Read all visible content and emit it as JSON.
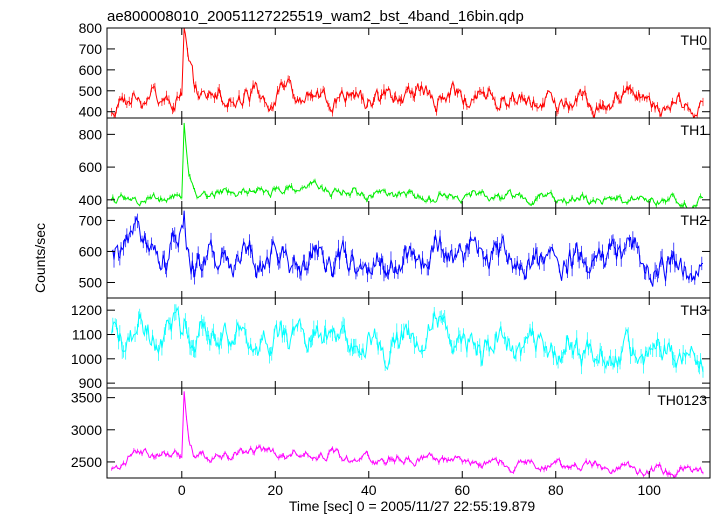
{
  "chart_data": {
    "type": "line",
    "title": "ae800008010_20051127225519_wam2_bst_4band_16bin.qdp",
    "xlabel": "Time [sec] 0 = 2005/11/27 22:55:19.879",
    "ylabel": "Counts/sec",
    "xlim": [
      -16,
      113
    ],
    "x_ticks": [
      0,
      20,
      40,
      60,
      80,
      100
    ],
    "grid": false,
    "bin_sec": 0.25,
    "series": [
      {
        "name": "TH0",
        "color": "#ff0000",
        "ylim": [
          370,
          800
        ],
        "y_ticks": [
          400,
          500,
          600,
          700,
          800
        ],
        "baseline": 460,
        "noise": 30,
        "points": [
          [
            -15,
            400
          ],
          [
            -12,
            420
          ],
          [
            -10,
            500
          ],
          [
            -8,
            480
          ],
          [
            -5,
            470
          ],
          [
            -2,
            480
          ],
          [
            0,
            480
          ],
          [
            0.5,
            800
          ],
          [
            1,
            720
          ],
          [
            1.5,
            620
          ],
          [
            2.5,
            520
          ],
          [
            4,
            480
          ],
          [
            10,
            470
          ],
          [
            20,
            490
          ],
          [
            30,
            470
          ],
          [
            40,
            460
          ],
          [
            50,
            480
          ],
          [
            60,
            470
          ],
          [
            70,
            455
          ],
          [
            80,
            450
          ],
          [
            90,
            440
          ],
          [
            96,
            520
          ],
          [
            100,
            450
          ],
          [
            105,
            440
          ],
          [
            111,
            430
          ]
        ]
      },
      {
        "name": "TH1",
        "color": "#00ee00",
        "ylim": [
          350,
          900
        ],
        "y_ticks": [
          400,
          600,
          800
        ],
        "baseline": 420,
        "noise": 20,
        "points": [
          [
            -15,
            390
          ],
          [
            -10,
            410
          ],
          [
            -5,
            410
          ],
          [
            0,
            420
          ],
          [
            0.5,
            870
          ],
          [
            1,
            700
          ],
          [
            1.5,
            560
          ],
          [
            2.5,
            460
          ],
          [
            4,
            430
          ],
          [
            10,
            440
          ],
          [
            20,
            460
          ],
          [
            27,
            480
          ],
          [
            35,
            450
          ],
          [
            42,
            440
          ],
          [
            50,
            420
          ],
          [
            60,
            420
          ],
          [
            70,
            420
          ],
          [
            80,
            410
          ],
          [
            90,
            400
          ],
          [
            100,
            400
          ],
          [
            111,
            390
          ]
        ]
      },
      {
        "name": "TH2",
        "color": "#0000ff",
        "ylim": [
          450,
          740
        ],
        "y_ticks": [
          500,
          600,
          700
        ],
        "baseline": 570,
        "noise": 35,
        "points": [
          [
            -15,
            560
          ],
          [
            -12,
            600
          ],
          [
            -10,
            650
          ],
          [
            -5,
            600
          ],
          [
            0,
            620
          ],
          [
            0.5,
            700
          ],
          [
            1,
            640
          ],
          [
            3,
            580
          ],
          [
            10,
            600
          ],
          [
            20,
            580
          ],
          [
            30,
            570
          ],
          [
            40,
            560
          ],
          [
            50,
            580
          ],
          [
            60,
            590
          ],
          [
            70,
            570
          ],
          [
            80,
            560
          ],
          [
            90,
            560
          ],
          [
            96,
            600
          ],
          [
            100,
            540
          ],
          [
            111,
            550
          ]
        ]
      },
      {
        "name": "TH3",
        "color": "#00ffff",
        "ylim": [
          880,
          1250
        ],
        "y_ticks": [
          900,
          1000,
          1100,
          1200
        ],
        "baseline": 1060,
        "noise": 45,
        "points": [
          [
            -15,
            1050
          ],
          [
            -10,
            1100
          ],
          [
            -5,
            1090
          ],
          [
            0,
            1100
          ],
          [
            0.5,
            1180
          ],
          [
            1,
            1120
          ],
          [
            3,
            1080
          ],
          [
            10,
            1090
          ],
          [
            20,
            1080
          ],
          [
            30,
            1110
          ],
          [
            40,
            1050
          ],
          [
            50,
            1060
          ],
          [
            55,
            1120
          ],
          [
            60,
            1060
          ],
          [
            70,
            1040
          ],
          [
            80,
            1030
          ],
          [
            90,
            1030
          ],
          [
            100,
            1010
          ],
          [
            111,
            1010
          ]
        ]
      },
      {
        "name": "TH0123",
        "color": "#ff00ff",
        "ylim": [
          2250,
          3650
        ],
        "y_ticks": [
          2500,
          3000,
          3500
        ],
        "baseline": 2500,
        "noise": 50,
        "points": [
          [
            -15,
            2350
          ],
          [
            -12,
            2550
          ],
          [
            -10,
            2650
          ],
          [
            -5,
            2600
          ],
          [
            0,
            2600
          ],
          [
            0.5,
            3600
          ],
          [
            1,
            3200
          ],
          [
            1.5,
            2900
          ],
          [
            2.5,
            2650
          ],
          [
            4,
            2580
          ],
          [
            10,
            2600
          ],
          [
            15,
            2700
          ],
          [
            20,
            2650
          ],
          [
            30,
            2600
          ],
          [
            40,
            2550
          ],
          [
            50,
            2550
          ],
          [
            60,
            2520
          ],
          [
            70,
            2450
          ],
          [
            80,
            2450
          ],
          [
            90,
            2400
          ],
          [
            100,
            2380
          ],
          [
            111,
            2350
          ]
        ]
      }
    ]
  }
}
